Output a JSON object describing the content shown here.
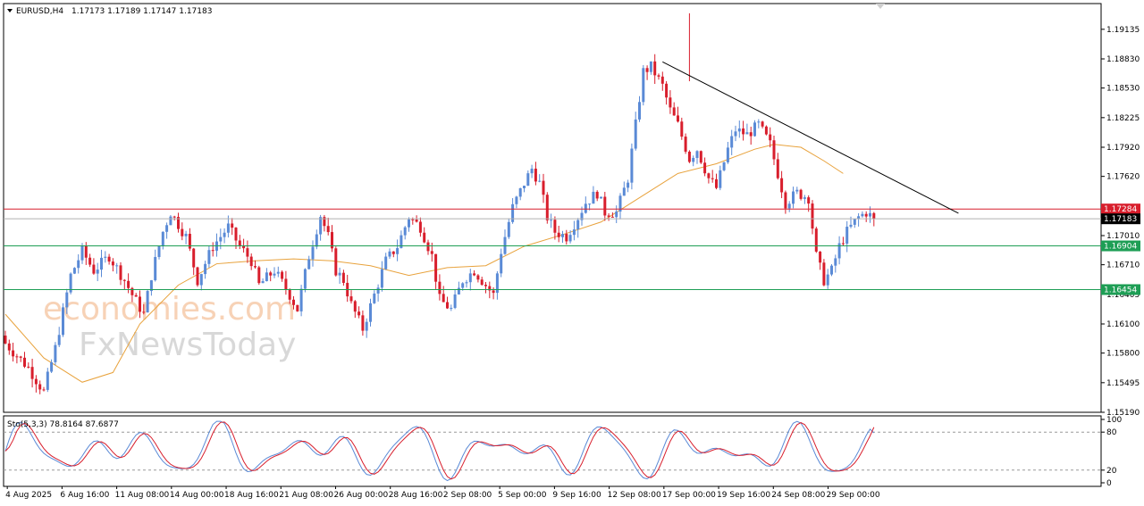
{
  "header": {
    "symbol": "EURUSD,H4",
    "ohlc": "1.17173 1.17189 1.17147 1.17183"
  },
  "watermark": {
    "brand_top": "economies.com",
    "brand_bottom": "FxNewsToday"
  },
  "colors": {
    "bull": "#5a8ad6",
    "bear": "#d81e2c",
    "ma": "#e8a23c",
    "trendline": "#000000",
    "resistance": "#d81e2c",
    "support": "#1e9e55",
    "current": "#000000",
    "stoch_main": "#5a8ad6",
    "stoch_signal": "#d81e2c"
  },
  "chart_data": [
    {
      "type": "candlestick",
      "title": "EURUSD,H4",
      "ylim": [
        1.1519,
        1.194
      ],
      "y_ticks": [
        "1.19135",
        "1.18830",
        "1.18530",
        "1.18225",
        "1.17920",
        "1.17620",
        "1.17010",
        "1.16710",
        "1.16405",
        "1.16100",
        "1.15800",
        "1.15495",
        "1.15190"
      ],
      "x_ticks": [
        "4 Aug 2025",
        "6 Aug 16:00",
        "11 Aug 08:00",
        "14 Aug 00:00",
        "18 Aug 16:00",
        "21 Aug 08:00",
        "26 Aug 00:00",
        "28 Aug 16:00",
        "2 Sep 08:00",
        "5 Sep 00:00",
        "9 Sep 16:00",
        "12 Sep 08:00",
        "17 Sep 00:00",
        "19 Sep 16:00",
        "24 Sep 08:00",
        "29 Sep 00:00"
      ],
      "ohlc_legend": "1.17173 1.17189 1.17147 1.17183",
      "price_path": [
        [
          0,
          1.159
        ],
        [
          6,
          1.1565
        ],
        [
          10,
          1.154
        ],
        [
          13,
          1.1585
        ],
        [
          17,
          1.166
        ],
        [
          20,
          1.1685
        ],
        [
          23,
          1.1665
        ],
        [
          27,
          1.168
        ],
        [
          31,
          1.1655
        ],
        [
          33,
          1.164
        ],
        [
          36,
          1.162
        ],
        [
          38,
          1.166
        ],
        [
          41,
          1.1705
        ],
        [
          43,
          1.1725
        ],
        [
          47,
          1.17
        ],
        [
          50,
          1.1655
        ],
        [
          54,
          1.169
        ],
        [
          58,
          1.171
        ],
        [
          61,
          1.169
        ],
        [
          64,
          1.1675
        ],
        [
          66,
          1.165
        ],
        [
          70,
          1.1665
        ],
        [
          74,
          1.164
        ],
        [
          76,
          1.1625
        ],
        [
          79,
          1.168
        ],
        [
          82,
          1.1722
        ],
        [
          84,
          1.17
        ],
        [
          86,
          1.1665
        ],
        [
          88,
          1.1655
        ],
        [
          90,
          1.163
        ],
        [
          93,
          1.1605
        ],
        [
          96,
          1.164
        ],
        [
          99,
          1.1675
        ],
        [
          102,
          1.169
        ],
        [
          105,
          1.172
        ],
        [
          108,
          1.171
        ],
        [
          111,
          1.168
        ],
        [
          113,
          1.1635
        ],
        [
          116,
          1.1625
        ],
        [
          119,
          1.1655
        ],
        [
          122,
          1.1665
        ],
        [
          125,
          1.165
        ],
        [
          127,
          1.164
        ],
        [
          129,
          1.1685
        ],
        [
          132,
          1.173
        ],
        [
          135,
          1.1755
        ],
        [
          137,
          1.177
        ],
        [
          139,
          1.1755
        ],
        [
          141,
          1.172
        ],
        [
          143,
          1.1705
        ],
        [
          146,
          1.17
        ],
        [
          149,
          1.172
        ],
        [
          151,
          1.1735
        ],
        [
          154,
          1.1745
        ],
        [
          156,
          1.1725
        ],
        [
          159,
          1.1725
        ],
        [
          162,
          1.176
        ],
        [
          164,
          1.1815
        ],
        [
          166,
          1.187
        ],
        [
          168,
          1.1875
        ],
        [
          171,
          1.1855
        ],
        [
          173,
          1.183
        ],
        [
          175,
          1.1815
        ],
        [
          178,
          1.178
        ],
        [
          180,
          1.179
        ],
        [
          183,
          1.176
        ],
        [
          185,
          1.175
        ],
        [
          188,
          1.179
        ],
        [
          190,
          1.181
        ],
        [
          193,
          1.1805
        ],
        [
          196,
          1.1815
        ],
        [
          199,
          1.1795
        ],
        [
          201,
          1.1765
        ],
        [
          203,
          1.1735
        ],
        [
          206,
          1.1745
        ],
        [
          209,
          1.174
        ],
        [
          211,
          1.168
        ],
        [
          213,
          1.1655
        ],
        [
          215,
          1.1665
        ],
        [
          217,
          1.169
        ],
        [
          219,
          1.1705
        ],
        [
          222,
          1.172
        ],
        [
          224,
          1.1725
        ],
        [
          226,
          1.17183
        ]
      ],
      "reference_lines": {
        "resistance": 1.17284,
        "current_price": 1.17183,
        "support_1": 1.16904,
        "support_2": 1.16454
      },
      "price_tags": [
        "1.17284",
        "1.17183",
        "1.16904",
        "1.16454"
      ],
      "trendline": [
        [
          171,
          1.188
        ],
        [
          248,
          1.1724
        ]
      ],
      "moving_average": [
        [
          0,
          1.162
        ],
        [
          10,
          1.1575
        ],
        [
          20,
          1.155
        ],
        [
          28,
          1.156
        ],
        [
          35,
          1.161
        ],
        [
          45,
          1.165
        ],
        [
          55,
          1.1672
        ],
        [
          65,
          1.1675
        ],
        [
          75,
          1.1677
        ],
        [
          85,
          1.1675
        ],
        [
          95,
          1.167
        ],
        [
          105,
          1.166
        ],
        [
          115,
          1.1668
        ],
        [
          125,
          1.167
        ],
        [
          135,
          1.169
        ],
        [
          145,
          1.1702
        ],
        [
          155,
          1.1715
        ],
        [
          165,
          1.174
        ],
        [
          175,
          1.1765
        ],
        [
          185,
          1.1775
        ],
        [
          195,
          1.179
        ],
        [
          200,
          1.1795
        ],
        [
          207,
          1.1792
        ],
        [
          213,
          1.1778
        ],
        [
          218,
          1.1765
        ]
      ]
    },
    {
      "type": "line",
      "title": "Sto(5,3,3) 78.8164 87.6877",
      "ylim": [
        0,
        100
      ],
      "y_ticks": [
        "100",
        "80",
        "20",
        "0"
      ],
      "levels": [
        80,
        20
      ]
    }
  ]
}
